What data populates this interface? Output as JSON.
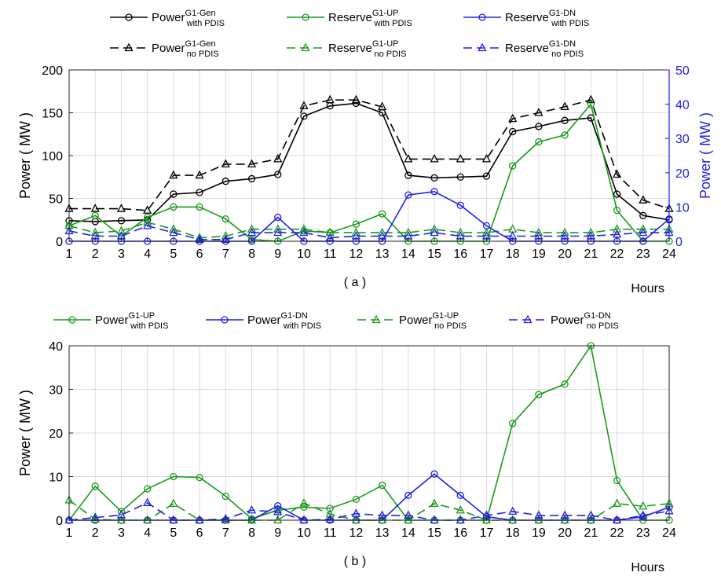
{
  "chart_data": [
    {
      "type": "line",
      "panel_label": "( a )",
      "xlabel": "Hours",
      "ylabel": "Power ( MW )",
      "ylabel_right": "Power ( MW )",
      "x": [
        1,
        2,
        3,
        4,
        5,
        6,
        7,
        8,
        9,
        10,
        11,
        12,
        13,
        14,
        15,
        16,
        17,
        18,
        19,
        20,
        21,
        22,
        23,
        24
      ],
      "xlim": [
        1,
        24
      ],
      "ylim": [
        0,
        200
      ],
      "yticks": [
        0,
        50,
        100,
        150,
        200
      ],
      "ylim_right": [
        0,
        50
      ],
      "yticks_right": [
        0,
        10,
        20,
        30,
        40,
        50
      ],
      "grid": true,
      "legend_position": "top",
      "series": [
        {
          "name": "Power",
          "sup": "G1-Gen",
          "sub": "with PDIS",
          "axis": "left",
          "color": "#000000",
          "dash": "solid",
          "marker": "circle",
          "values": [
            24,
            23,
            24,
            25,
            55,
            57,
            70,
            73,
            78,
            146,
            158,
            161,
            150,
            77,
            74,
            75,
            76,
            128,
            134,
            141,
            144,
            55,
            30,
            25
          ]
        },
        {
          "name": "Power",
          "sup": "G1-Gen",
          "sub": "no PDIS",
          "axis": "left",
          "color": "#000000",
          "dash": "dashed",
          "marker": "triangle",
          "values": [
            38,
            38,
            38,
            36,
            77,
            77,
            90,
            90,
            96,
            158,
            165,
            165,
            157,
            96,
            96,
            96,
            96,
            143,
            150,
            157,
            165,
            78,
            48,
            38
          ]
        },
        {
          "name": "Reserve",
          "sup": "G1-UP",
          "sub": "with PDIS",
          "axis": "right",
          "color": "#1a9a1a",
          "dash": "solid",
          "marker": "circle",
          "values": [
            4.5,
            7.5,
            1.5,
            7,
            10,
            10,
            6.5,
            0.5,
            0,
            3,
            2.5,
            5,
            8,
            0,
            0,
            0,
            0,
            22,
            29,
            31,
            40,
            9,
            0,
            0
          ]
        },
        {
          "name": "Reserve",
          "sup": "G1-UP",
          "sub": "no PDIS",
          "axis": "right",
          "color": "#1a9a1a",
          "dash": "dashed",
          "marker": "triangle",
          "values": [
            4.5,
            2.5,
            3,
            5.5,
            3.5,
            1,
            1.5,
            3.5,
            3.5,
            3.5,
            2.5,
            2.5,
            2.5,
            2.5,
            3.5,
            2.5,
            2.5,
            3.5,
            2.5,
            2.5,
            2.5,
            3.5,
            3.5,
            3.5
          ]
        },
        {
          "name": "Reserve",
          "sup": "G1-DN",
          "sub": "with PDIS",
          "axis": "right",
          "color": "#2020e8",
          "dash": "solid",
          "marker": "circle",
          "values": [
            0,
            0,
            0,
            0,
            0,
            0,
            0,
            0,
            7,
            0,
            0,
            0,
            0,
            13.5,
            14.5,
            10.5,
            4.5,
            0,
            0,
            0,
            0,
            0,
            0,
            6.5
          ]
        },
        {
          "name": "Reserve",
          "sup": "G1-DN",
          "sub": "no PDIS",
          "axis": "right",
          "color": "#2020e8",
          "dash": "dashed",
          "marker": "triangle",
          "values": [
            3,
            1.5,
            1.5,
            4.5,
            2.5,
            0.5,
            0.5,
            2.5,
            2.5,
            2.5,
            1,
            1.5,
            1.5,
            1.5,
            2.5,
            1.5,
            1.5,
            1.5,
            1.5,
            1.5,
            1.5,
            2,
            2.5,
            2.5
          ]
        }
      ]
    },
    {
      "type": "line",
      "panel_label": "( b )",
      "xlabel": "Hours",
      "ylabel": "Power ( MW )",
      "x": [
        1,
        2,
        3,
        4,
        5,
        6,
        7,
        8,
        9,
        10,
        11,
        12,
        13,
        14,
        15,
        16,
        17,
        18,
        19,
        20,
        21,
        22,
        23,
        24
      ],
      "xlim": [
        1,
        24
      ],
      "ylim": [
        0,
        40
      ],
      "yticks": [
        0,
        10,
        20,
        30,
        40
      ],
      "grid": true,
      "legend_position": "top",
      "series": [
        {
          "name": "Power",
          "sup": "G1-UP",
          "sub": "with PDIS",
          "axis": "left",
          "color": "#1a9a1a",
          "dash": "solid",
          "marker": "circle",
          "values": [
            0,
            7.8,
            2,
            7.2,
            10,
            9.8,
            5.5,
            0.3,
            2.3,
            3,
            2.7,
            4.8,
            8,
            0,
            0,
            0,
            0,
            22.2,
            28.8,
            31.2,
            40,
            9.1,
            0,
            0
          ]
        },
        {
          "name": "Power",
          "sup": "G1-DN",
          "sub": "with PDIS",
          "axis": "left",
          "color": "#2020e8",
          "dash": "solid",
          "marker": "circle",
          "values": [
            0,
            0,
            0,
            0,
            0,
            0,
            0,
            0,
            3.3,
            0,
            0,
            0,
            0,
            5.7,
            10.6,
            5.7,
            0.8,
            0,
            0,
            0,
            0,
            0,
            0.8,
            3
          ]
        },
        {
          "name": "Power",
          "sup": "G1-UP",
          "sub": "no PDIS",
          "axis": "left",
          "color": "#1a9a1a",
          "dash": "dashed",
          "marker": "triangle",
          "values": [
            4.6,
            0.2,
            0,
            0,
            3.8,
            0,
            0,
            0,
            0,
            3.9,
            1.4,
            0,
            0,
            0,
            3.8,
            2.3,
            0,
            0,
            0,
            0,
            0,
            3.8,
            3.2,
            3.8
          ]
        },
        {
          "name": "Power",
          "sup": "G1-DN",
          "sub": "no PDIS",
          "axis": "left",
          "color": "#2020e8",
          "dash": "dashed",
          "marker": "triangle",
          "values": [
            0,
            0.6,
            1.2,
            4,
            0,
            0,
            0.3,
            2.3,
            1.9,
            0,
            0.2,
            1.5,
            1.1,
            1.1,
            0,
            0,
            1.1,
            2,
            1.1,
            1.1,
            1.1,
            0,
            1.1,
            2.1
          ]
        }
      ]
    }
  ]
}
